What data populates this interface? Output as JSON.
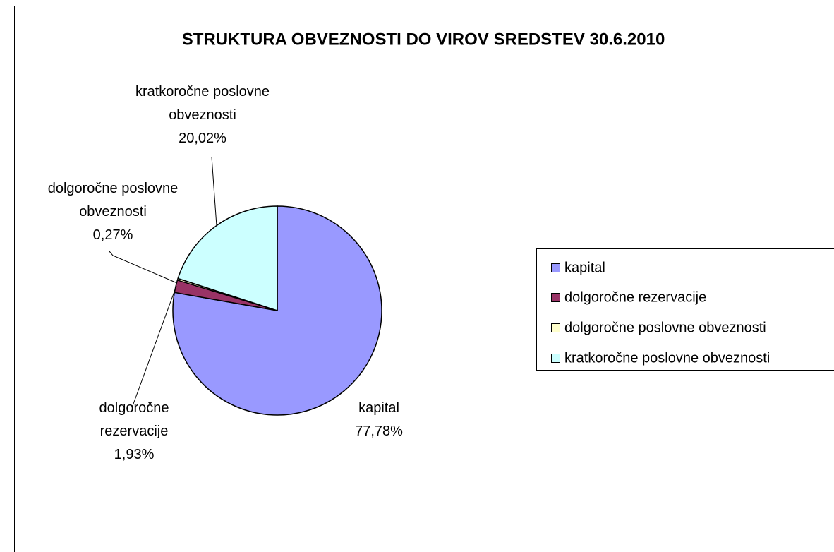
{
  "chart_data": {
    "type": "pie",
    "title": "STRUKTURA OBVEZNOSTI DO VIROV SREDSTEV 30.6.2010",
    "categories": [
      "kapital",
      "dolgoročne rezervacije",
      "dolgoročne poslovne obveznosti",
      "kratkoročne poslovne obveznosti"
    ],
    "values": [
      77.78,
      1.93,
      0.27,
      20.02
    ],
    "value_labels": [
      "77,78%",
      "1,93%",
      "0,27%",
      "20,02%"
    ],
    "colors": [
      "#9999ff",
      "#993366",
      "#ffffcc",
      "#ccffff"
    ],
    "legend": "right"
  }
}
